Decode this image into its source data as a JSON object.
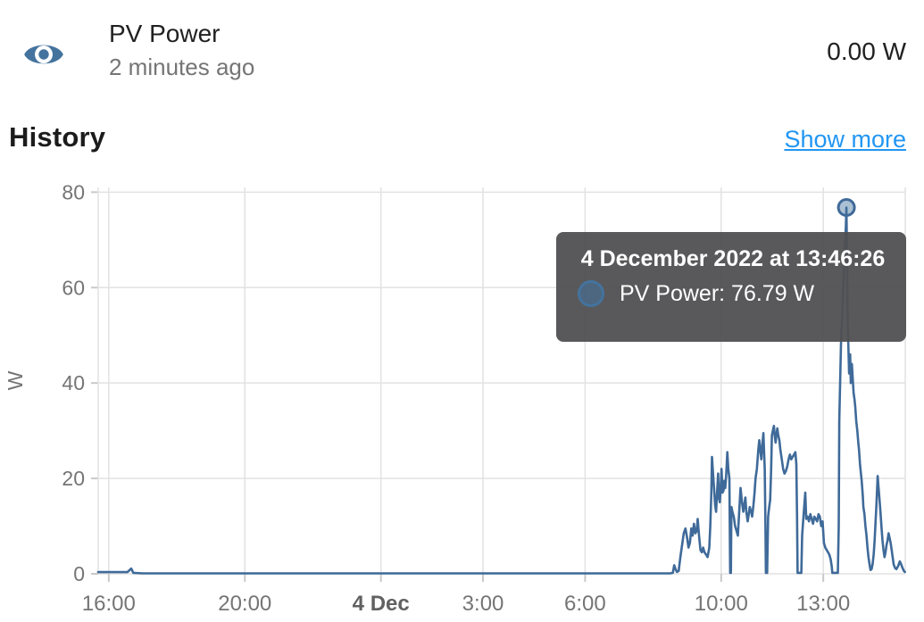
{
  "header": {
    "title": "PV Power",
    "last_changed": "2 minutes ago",
    "state": "0.00 W",
    "icon": "eye-icon",
    "icon_color": "#44739e"
  },
  "history": {
    "heading": "History",
    "show_more": "Show more",
    "link_color": "#2196f3"
  },
  "tooltip": {
    "title": "4 December 2022 at 13:46:26",
    "series_label": "PV Power",
    "value": "76.79 W",
    "text": "PV Power: 76.79 W",
    "marker_color": "#44739e",
    "bg_color": "rgba(80,80,82,0.95)"
  },
  "chart_data": {
    "type": "line",
    "title": "",
    "ylabel": "W",
    "unit": "W",
    "line_color": "#3f6a99",
    "grid_color": "#e2e2e2",
    "tick_color": "#c9c9c9",
    "tick_label_color": "#757575",
    "bold_tick_label_color": "#616161",
    "grid": true,
    "legend": false,
    "ylim": [
      0,
      81
    ],
    "xlim": [
      -0.31,
      23.41
    ],
    "x_unit": "hours since 2022-12-03 16:00",
    "y_ticks": [
      0,
      20,
      40,
      60,
      80
    ],
    "x_ticks": [
      {
        "pos": 0,
        "label": "16:00",
        "bold": false
      },
      {
        "pos": 4,
        "label": "20:00",
        "bold": false
      },
      {
        "pos": 8,
        "label": "4 Dec",
        "bold": true
      },
      {
        "pos": 11,
        "label": "3:00",
        "bold": false
      },
      {
        "pos": 14,
        "label": "6:00",
        "bold": false
      },
      {
        "pos": 18,
        "label": "10:00",
        "bold": false
      },
      {
        "pos": 21,
        "label": "13:00",
        "bold": false
      }
    ],
    "selected_point": {
      "x": 21.68,
      "y": 76.79,
      "time": "13:46:26",
      "date": "4 December 2022"
    },
    "series": [
      {
        "name": "PV Power",
        "points": [
          [
            -0.31,
            0.35
          ],
          [
            0.55,
            0.35
          ],
          [
            0.66,
            1.1
          ],
          [
            0.72,
            0.2
          ],
          [
            1.0,
            0.1
          ],
          [
            4,
            0.1
          ],
          [
            8,
            0.1
          ],
          [
            12,
            0.1
          ],
          [
            16.0,
            0.1
          ],
          [
            16.5,
            0.1
          ],
          [
            16.58,
            0.2
          ],
          [
            16.62,
            1.8
          ],
          [
            16.66,
            1.0
          ],
          [
            16.7,
            0.4
          ],
          [
            16.75,
            0.6
          ],
          [
            16.8,
            3.5
          ],
          [
            16.85,
            6.0
          ],
          [
            16.9,
            8.5
          ],
          [
            16.95,
            9.5
          ],
          [
            17.0,
            7.5
          ],
          [
            17.04,
            5.5
          ],
          [
            17.08,
            6.5
          ],
          [
            17.12,
            9.5
          ],
          [
            17.16,
            8.0
          ],
          [
            17.2,
            10.5
          ],
          [
            17.24,
            8.5
          ],
          [
            17.28,
            9.0
          ],
          [
            17.31,
            11.5
          ],
          [
            17.35,
            8.0
          ],
          [
            17.39,
            5.0
          ],
          [
            17.43,
            4.5
          ],
          [
            17.47,
            5.5
          ],
          [
            17.51,
            4.5
          ],
          [
            17.56,
            4.0
          ],
          [
            17.6,
            3.5
          ],
          [
            17.65,
            5.5
          ],
          [
            17.68,
            10.0
          ],
          [
            17.71,
            17.0
          ],
          [
            17.73,
            24.5
          ],
          [
            17.76,
            21.0
          ],
          [
            17.79,
            18.0
          ],
          [
            17.82,
            14.5
          ],
          [
            17.85,
            13.0
          ],
          [
            17.88,
            17.0
          ],
          [
            17.91,
            21.0
          ],
          [
            17.93,
            16.0
          ],
          [
            17.96,
            15.0
          ],
          [
            17.99,
            18.5
          ],
          [
            18.01,
            22.0
          ],
          [
            18.04,
            17.0
          ],
          [
            18.07,
            17.5
          ],
          [
            18.09,
            19.5
          ],
          [
            18.12,
            18.0
          ],
          [
            18.15,
            21.0
          ],
          [
            18.18,
            25.5
          ],
          [
            18.21,
            22.0
          ],
          [
            18.24,
            20.0
          ],
          [
            18.255,
            9.0
          ],
          [
            18.265,
            0.2
          ],
          [
            18.285,
            0.2
          ],
          [
            18.3,
            14.0
          ],
          [
            18.33,
            13.0
          ],
          [
            18.37,
            12.0
          ],
          [
            18.41,
            10.0
          ],
          [
            18.45,
            9.0
          ],
          [
            18.49,
            8.0
          ],
          [
            18.53,
            13.0
          ],
          [
            18.57,
            18.0
          ],
          [
            18.61,
            15.0
          ],
          [
            18.65,
            13.0
          ],
          [
            18.68,
            14.5
          ],
          [
            18.71,
            16.0
          ],
          [
            18.74,
            13.0
          ],
          [
            18.78,
            11.0
          ],
          [
            18.81,
            12.5
          ],
          [
            18.84,
            14.0
          ],
          [
            18.88,
            13.0
          ],
          [
            18.91,
            12.0
          ],
          [
            18.95,
            14.5
          ],
          [
            18.98,
            17.0
          ],
          [
            19.01,
            20.0
          ],
          [
            19.05,
            22.0
          ],
          [
            19.09,
            26.0
          ],
          [
            19.12,
            28.0
          ],
          [
            19.15,
            26.0
          ],
          [
            19.18,
            24.0
          ],
          [
            19.21,
            27.0
          ],
          [
            19.24,
            29.5
          ],
          [
            19.26,
            26.0
          ],
          [
            19.28,
            22.0
          ],
          [
            19.3,
            10.0
          ],
          [
            19.315,
            0.2
          ],
          [
            19.35,
            0.2
          ],
          [
            19.38,
            12.0
          ],
          [
            19.41,
            14.0
          ],
          [
            19.44,
            15.5
          ],
          [
            19.47,
            22.0
          ],
          [
            19.49,
            29.0
          ],
          [
            19.52,
            30.0
          ],
          [
            19.55,
            31.0
          ],
          [
            19.57,
            29.0
          ],
          [
            19.6,
            27.5
          ],
          [
            19.63,
            29.5
          ],
          [
            19.65,
            30.5
          ],
          [
            19.68,
            29.0
          ],
          [
            19.71,
            28.0
          ],
          [
            19.74,
            26.0
          ],
          [
            19.78,
            24.0
          ],
          [
            19.82,
            22.0
          ],
          [
            19.86,
            21.0
          ],
          [
            19.9,
            21.5
          ],
          [
            19.94,
            22.5
          ],
          [
            19.98,
            24.0
          ],
          [
            20.02,
            25.0
          ],
          [
            20.06,
            24.0
          ],
          [
            20.1,
            24.5
          ],
          [
            20.14,
            25.0
          ],
          [
            20.18,
            25.5
          ],
          [
            20.21,
            23.0
          ],
          [
            20.23,
            12.0
          ],
          [
            20.245,
            0.2
          ],
          [
            20.355,
            0.2
          ],
          [
            20.38,
            8.0
          ],
          [
            20.42,
            12.0
          ],
          [
            20.47,
            17.0
          ],
          [
            20.5,
            11.5
          ],
          [
            20.54,
            12.0
          ],
          [
            20.58,
            11.0
          ],
          [
            20.62,
            12.5
          ],
          [
            20.66,
            11.5
          ],
          [
            20.7,
            10.5
          ],
          [
            20.74,
            12.0
          ],
          [
            20.78,
            11.5
          ],
          [
            20.82,
            11.0
          ],
          [
            20.86,
            12.5
          ],
          [
            20.9,
            12.0
          ],
          [
            20.94,
            10.0
          ],
          [
            20.98,
            11.0
          ],
          [
            21.02,
            6.5
          ],
          [
            21.06,
            5.5
          ],
          [
            21.1,
            5.0
          ],
          [
            21.14,
            4.5
          ],
          [
            21.18,
            4.0
          ],
          [
            21.22,
            3.0
          ],
          [
            21.25,
            1.5
          ],
          [
            21.265,
            0.2
          ],
          [
            21.43,
            0.2
          ],
          [
            21.455,
            10.0
          ],
          [
            21.47,
            32.0
          ],
          [
            21.52,
            48.0
          ],
          [
            21.56,
            55.0
          ],
          [
            21.6,
            62.0
          ],
          [
            21.64,
            69.0
          ],
          [
            21.665,
            73.0
          ],
          [
            21.68,
            76.79
          ],
          [
            21.7,
            66.0
          ],
          [
            21.72,
            52.0
          ],
          [
            21.74,
            47.0
          ],
          [
            21.76,
            42.0
          ],
          [
            21.79,
            46.0
          ],
          [
            21.81,
            40.0
          ],
          [
            21.84,
            44.0
          ],
          [
            21.87,
            40.5
          ],
          [
            21.89,
            38.0
          ],
          [
            21.92,
            36.5
          ],
          [
            21.94,
            35.0
          ],
          [
            21.97,
            32.0
          ],
          [
            22.0,
            30.0
          ],
          [
            22.03,
            27.5
          ],
          [
            22.05,
            26.0
          ],
          [
            22.08,
            23.0
          ],
          [
            22.1,
            21.5
          ],
          [
            22.13,
            19.5
          ],
          [
            22.16,
            16.5
          ],
          [
            22.18,
            14.0
          ],
          [
            22.21,
            12.5
          ],
          [
            22.24,
            10.0
          ],
          [
            22.27,
            8.0
          ],
          [
            22.3,
            5.5
          ],
          [
            22.33,
            3.5
          ],
          [
            22.36,
            2.0
          ],
          [
            22.39,
            0.8
          ],
          [
            22.42,
            1.0
          ],
          [
            22.45,
            2.0
          ],
          [
            22.48,
            4.0
          ],
          [
            22.51,
            7.0
          ],
          [
            22.53,
            10.0
          ],
          [
            22.56,
            14.0
          ],
          [
            22.58,
            17.5
          ],
          [
            22.6,
            20.5
          ],
          [
            22.62,
            18.5
          ],
          [
            22.65,
            16.0
          ],
          [
            22.68,
            13.0
          ],
          [
            22.71,
            10.0
          ],
          [
            22.74,
            7.0
          ],
          [
            22.77,
            5.0
          ],
          [
            22.8,
            3.5
          ],
          [
            22.83,
            4.5
          ],
          [
            22.86,
            6.0
          ],
          [
            22.89,
            7.0
          ],
          [
            22.92,
            8.5
          ],
          [
            22.95,
            7.5
          ],
          [
            22.98,
            6.5
          ],
          [
            23.01,
            5.0
          ],
          [
            23.04,
            3.5
          ],
          [
            23.07,
            2.0
          ],
          [
            23.11,
            1.2
          ],
          [
            23.15,
            1.0
          ],
          [
            23.2,
            1.6
          ],
          [
            23.25,
            2.6
          ],
          [
            23.29,
            2.0
          ],
          [
            23.33,
            1.2
          ],
          [
            23.37,
            0.6
          ],
          [
            23.4,
            0.4
          ]
        ]
      }
    ]
  }
}
